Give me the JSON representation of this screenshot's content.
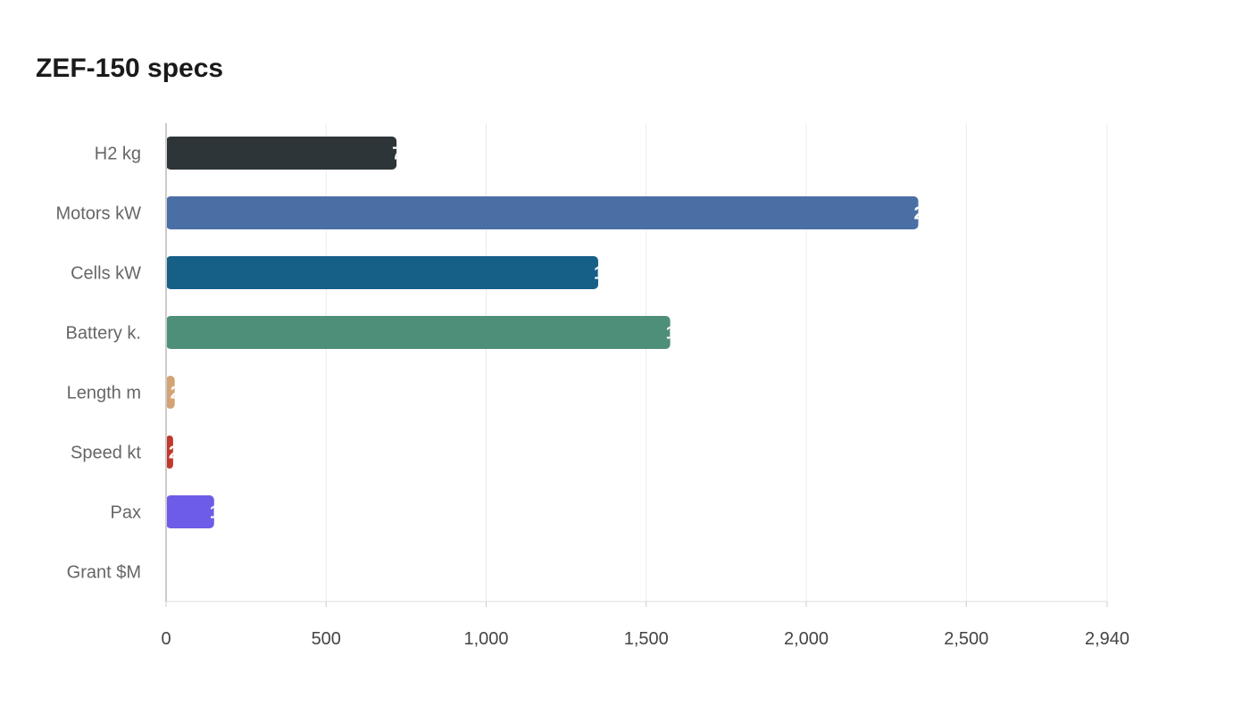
{
  "chart_data": {
    "type": "bar",
    "orientation": "horizontal",
    "title": "ZEF-150 specs",
    "categories": [
      "H2 kg",
      "Motors kW",
      "Cells kW",
      "Battery k.",
      "Length m",
      "Speed kt",
      "Pax",
      "Grant $M"
    ],
    "values": [
      720,
      2350,
      1350,
      1575,
      27,
      22,
      150,
      2
    ],
    "colors": [
      "#2e3538",
      "#4a6fa5",
      "#166088",
      "#4e8f7a",
      "#d4a373",
      "#c0392b",
      "#6c5ce7",
      "#a3bfdc"
    ],
    "xlim": [
      0,
      2940
    ],
    "xticks": [
      "0",
      "500",
      "1,000",
      "1,500",
      "2,000",
      "2,500",
      "2,940"
    ],
    "xtick_values": [
      0,
      500,
      1000,
      1500,
      2000,
      2500,
      2940
    ],
    "grid": true,
    "legend": "none"
  }
}
